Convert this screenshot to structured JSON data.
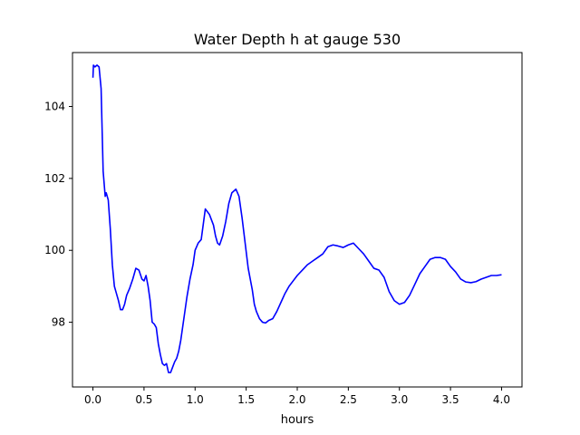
{
  "chart_data": {
    "type": "line",
    "title": "Water Depth h at gauge 530",
    "xlabel": "hours",
    "ylabel": "",
    "xlim": [
      -0.2,
      4.2
    ],
    "ylim": [
      96.2,
      105.5
    ],
    "xticks": [
      0.0,
      0.5,
      1.0,
      1.5,
      2.0,
      2.5,
      3.0,
      3.5,
      4.0
    ],
    "xtick_labels": [
      "0.0",
      "0.5",
      "1.0",
      "1.5",
      "2.0",
      "2.5",
      "3.0",
      "3.5",
      "4.0"
    ],
    "yticks": [
      98,
      100,
      102,
      104
    ],
    "ytick_labels": [
      "98",
      "100",
      "102",
      "104"
    ],
    "grid": false,
    "series": [
      {
        "color": "#0000ff",
        "x": [
          0.0,
          0.005,
          0.02,
          0.04,
          0.06,
          0.08,
          0.1,
          0.12,
          0.13,
          0.15,
          0.17,
          0.19,
          0.21,
          0.23,
          0.25,
          0.27,
          0.29,
          0.31,
          0.33,
          0.36,
          0.39,
          0.42,
          0.45,
          0.48,
          0.5,
          0.52,
          0.54,
          0.56,
          0.58,
          0.6,
          0.62,
          0.64,
          0.66,
          0.68,
          0.7,
          0.72,
          0.74,
          0.76,
          0.78,
          0.8,
          0.82,
          0.84,
          0.86,
          0.88,
          0.9,
          0.92,
          0.95,
          0.98,
          1.0,
          1.03,
          1.06,
          1.1,
          1.14,
          1.18,
          1.2,
          1.22,
          1.24,
          1.27,
          1.3,
          1.33,
          1.36,
          1.4,
          1.43,
          1.46,
          1.49,
          1.52,
          1.54,
          1.56,
          1.58,
          1.6,
          1.63,
          1.66,
          1.69,
          1.72,
          1.76,
          1.8,
          1.84,
          1.88,
          1.92,
          1.96,
          2.0,
          2.05,
          2.1,
          2.15,
          2.2,
          2.25,
          2.3,
          2.35,
          2.4,
          2.45,
          2.5,
          2.55,
          2.6,
          2.65,
          2.7,
          2.75,
          2.8,
          2.85,
          2.9,
          2.95,
          3.0,
          3.05,
          3.1,
          3.15,
          3.2,
          3.25,
          3.3,
          3.35,
          3.4,
          3.45,
          3.5,
          3.55,
          3.6,
          3.65,
          3.7,
          3.75,
          3.8,
          3.85,
          3.9,
          3.95,
          4.0
        ],
        "y": [
          104.8,
          105.15,
          105.1,
          105.15,
          105.1,
          104.5,
          102.2,
          101.5,
          101.6,
          101.4,
          100.6,
          99.6,
          99.0,
          98.8,
          98.6,
          98.35,
          98.35,
          98.5,
          98.75,
          98.95,
          99.2,
          99.5,
          99.45,
          99.2,
          99.15,
          99.3,
          99.0,
          98.6,
          98.0,
          97.95,
          97.85,
          97.4,
          97.1,
          96.85,
          96.8,
          96.85,
          96.6,
          96.6,
          96.75,
          96.9,
          97.0,
          97.2,
          97.5,
          97.9,
          98.3,
          98.7,
          99.2,
          99.6,
          100.0,
          100.2,
          100.3,
          101.15,
          101.0,
          100.7,
          100.4,
          100.2,
          100.15,
          100.4,
          100.8,
          101.3,
          101.6,
          101.7,
          101.5,
          100.9,
          100.2,
          99.5,
          99.2,
          98.9,
          98.5,
          98.3,
          98.1,
          98.0,
          97.98,
          98.05,
          98.1,
          98.3,
          98.55,
          98.8,
          99.0,
          99.15,
          99.3,
          99.45,
          99.6,
          99.7,
          99.8,
          99.9,
          100.1,
          100.15,
          100.12,
          100.08,
          100.15,
          100.2,
          100.05,
          99.9,
          99.7,
          99.5,
          99.45,
          99.25,
          98.85,
          98.6,
          98.5,
          98.55,
          98.75,
          99.05,
          99.35,
          99.55,
          99.75,
          99.8,
          99.8,
          99.75,
          99.55,
          99.4,
          99.2,
          99.12,
          99.1,
          99.13,
          99.2,
          99.25,
          99.3,
          99.3,
          99.32
        ]
      }
    ]
  }
}
